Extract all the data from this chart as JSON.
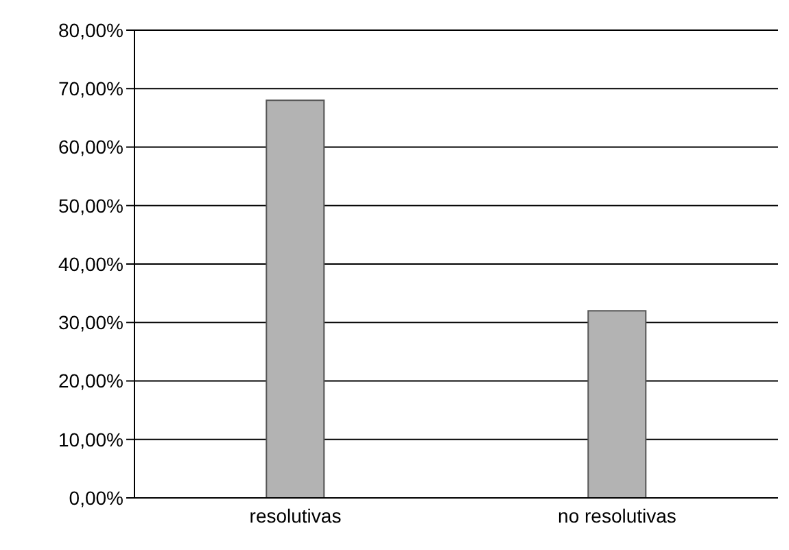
{
  "chart_data": {
    "type": "bar",
    "categories": [
      "resolutivas",
      "no resolutivas"
    ],
    "values": [
      68,
      32
    ],
    "color": "#b3b3b3",
    "ylim": [
      0,
      80
    ],
    "yticks": [
      {
        "value": 0,
        "label": "0,00%"
      },
      {
        "value": 10,
        "label": "10,00%"
      },
      {
        "value": 20,
        "label": "20,00%"
      },
      {
        "value": 30,
        "label": "30,00%"
      },
      {
        "value": 40,
        "label": "40,00%"
      },
      {
        "value": 50,
        "label": "50,00%"
      },
      {
        "value": 60,
        "label": "60,00%"
      },
      {
        "value": 70,
        "label": "70,00%"
      },
      {
        "value": 80,
        "label": "80,00%"
      }
    ],
    "grid": "y"
  }
}
